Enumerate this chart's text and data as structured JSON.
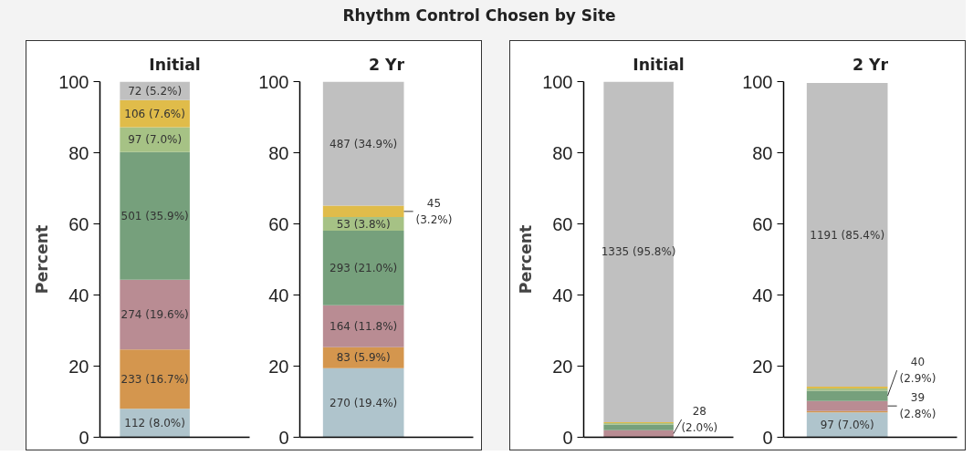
{
  "chart_data": [
    {
      "type": "bar",
      "stacked": true,
      "title": "Initial",
      "ylabel": "Percent",
      "annotations": [
        "Rhythm Control Chosen by Site"
      ],
      "categories": [
        null
      ],
      "ylim": [
        0,
        100
      ],
      "yticks": [
        0,
        20,
        40,
        60,
        80,
        100
      ],
      "tick_labels": "y",
      "grid": false,
      "series": [
        {
          "color": "#afc4cc",
          "values": [
            8.0
          ],
          "value_labels": [
            "112 (8.0%)"
          ]
        },
        {
          "color": "#d4964e",
          "values": [
            16.7
          ],
          "value_labels": [
            "233 (16.7%)"
          ]
        },
        {
          "color": "#b98c93",
          "values": [
            19.6
          ],
          "value_labels": [
            "274 (19.6%)"
          ]
        },
        {
          "color": "#76a07c",
          "values": [
            35.9
          ],
          "value_labels": [
            "501 (35.9%)"
          ]
        },
        {
          "color": "#a6c285",
          "values": [
            7.0
          ],
          "value_labels": [
            "97 (7.0%)"
          ]
        },
        {
          "color": "#e0bc4a",
          "values": [
            7.6
          ],
          "value_labels": [
            "106 (7.6%)"
          ]
        },
        {
          "color": "#c0c0c0",
          "values": [
            5.2
          ],
          "value_labels": [
            "72 (5.2%)"
          ]
        }
      ]
    },
    {
      "type": "bar",
      "stacked": true,
      "title": "2 Yr",
      "categories": [
        null
      ],
      "ylim": [
        0,
        100
      ],
      "yticks": [
        0,
        20,
        40,
        60,
        80,
        100
      ],
      "tick_labels": "y",
      "grid": false,
      "series": [
        {
          "color": "#afc4cc",
          "values": [
            19.4
          ],
          "value_labels": [
            "270 (19.4%)"
          ]
        },
        {
          "color": "#d4964e",
          "values": [
            5.9
          ],
          "value_labels": [
            "83 (5.9%)"
          ]
        },
        {
          "color": "#b98c93",
          "values": [
            11.8
          ],
          "value_labels": [
            "164 (11.8%)"
          ]
        },
        {
          "color": "#76a07c",
          "values": [
            21.0
          ],
          "value_labels": [
            "293 (21.0%)"
          ]
        },
        {
          "color": "#a6c285",
          "values": [
            3.8
          ],
          "value_labels": [
            "53 (3.8%)"
          ]
        },
        {
          "color": "#e0bc4a",
          "values": [
            3.2
          ],
          "value_labels": [
            "45 (3.2%)"
          ]
        },
        {
          "color": "#c0c0c0",
          "values": [
            34.9
          ],
          "value_labels": [
            "487 (34.9%)"
          ]
        }
      ]
    },
    {
      "type": "bar",
      "stacked": true,
      "title": "Initial",
      "ylabel": "Percent",
      "categories": [
        null
      ],
      "ylim": [
        0,
        100
      ],
      "yticks": [
        0,
        20,
        40,
        60,
        80,
        100
      ],
      "tick_labels": "y",
      "grid": false,
      "series": [
        {
          "color": "#b98c93",
          "values": [
            2.0
          ],
          "value_labels": [
            "28 (2.0%)"
          ]
        },
        {
          "color": "#76a07c",
          "values": [
            1.6
          ],
          "value_labels": [
            null
          ]
        },
        {
          "color": "#a6c285",
          "values": [
            0.4
          ],
          "value_labels": [
            null
          ]
        },
        {
          "color": "#e0bc4a",
          "values": [
            0.2
          ],
          "value_labels": [
            null
          ]
        },
        {
          "color": "#c0c0c0",
          "values": [
            95.8
          ],
          "value_labels": [
            "1335 (95.8%)"
          ]
        }
      ]
    },
    {
      "type": "bar",
      "stacked": true,
      "title": "2 Yr",
      "categories": [
        null
      ],
      "ylim": [
        0,
        100
      ],
      "yticks": [
        0,
        20,
        40,
        60,
        80,
        100
      ],
      "tick_labels": "y",
      "grid": false,
      "series": [
        {
          "color": "#afc4cc",
          "values": [
            7.0
          ],
          "value_labels": [
            "97 (7.0%)"
          ]
        },
        {
          "color": "#d4964e",
          "values": [
            0.4
          ],
          "value_labels": [
            null
          ]
        },
        {
          "color": "#b98c93",
          "values": [
            2.8
          ],
          "value_labels": [
            "39 (2.8%)"
          ]
        },
        {
          "color": "#76a07c",
          "values": [
            2.9
          ],
          "value_labels": [
            "40 (2.9%)"
          ]
        },
        {
          "color": "#a6c285",
          "values": [
            0.6
          ],
          "value_labels": [
            null
          ]
        },
        {
          "color": "#e0bc4a",
          "values": [
            0.5
          ],
          "value_labels": [
            null
          ]
        },
        {
          "color": "#c0c0c0",
          "values": [
            85.4
          ],
          "value_labels": [
            "1191 (85.4%)"
          ]
        }
      ]
    }
  ]
}
